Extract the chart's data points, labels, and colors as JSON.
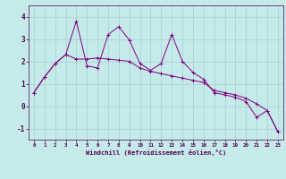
{
  "xlabel": "Windchill (Refroidissement éolien,°C)",
  "background_color": "#c5eaea",
  "line_color": "#800080",
  "grid_color": "#a8d0d0",
  "x_values": [
    0,
    1,
    2,
    3,
    4,
    5,
    6,
    7,
    8,
    9,
    10,
    11,
    12,
    13,
    14,
    15,
    16,
    17,
    18,
    19,
    20,
    21,
    22,
    23
  ],
  "y_series1": [
    0.6,
    1.3,
    1.9,
    2.3,
    3.8,
    1.8,
    1.7,
    3.2,
    3.55,
    2.95,
    1.9,
    1.6,
    1.9,
    3.2,
    2.0,
    1.5,
    1.2,
    0.6,
    0.5,
    0.4,
    0.2,
    -0.5,
    -0.2,
    -1.15
  ],
  "y_series2": [
    0.6,
    1.3,
    1.9,
    2.3,
    2.1,
    2.1,
    2.15,
    2.1,
    2.05,
    2.0,
    1.7,
    1.55,
    1.45,
    1.35,
    1.25,
    1.15,
    1.05,
    0.7,
    0.6,
    0.5,
    0.35,
    0.1,
    -0.2,
    -1.15
  ],
  "ylim": [
    -1.5,
    4.5
  ],
  "xlim": [
    -0.5,
    23.5
  ],
  "yticks": [
    -1,
    0,
    1,
    2,
    3,
    4
  ],
  "xticks": [
    0,
    1,
    2,
    3,
    4,
    5,
    6,
    7,
    8,
    9,
    10,
    11,
    12,
    13,
    14,
    15,
    16,
    17,
    18,
    19,
    20,
    21,
    22,
    23
  ],
  "xtick_labels": [
    "0",
    "1",
    "2",
    "3",
    "4",
    "5",
    "6",
    "7",
    "8",
    "9",
    "10",
    "11",
    "12",
    "13",
    "14",
    "15",
    "16",
    "17",
    "18",
    "19",
    "20",
    "21",
    "22",
    "23"
  ]
}
